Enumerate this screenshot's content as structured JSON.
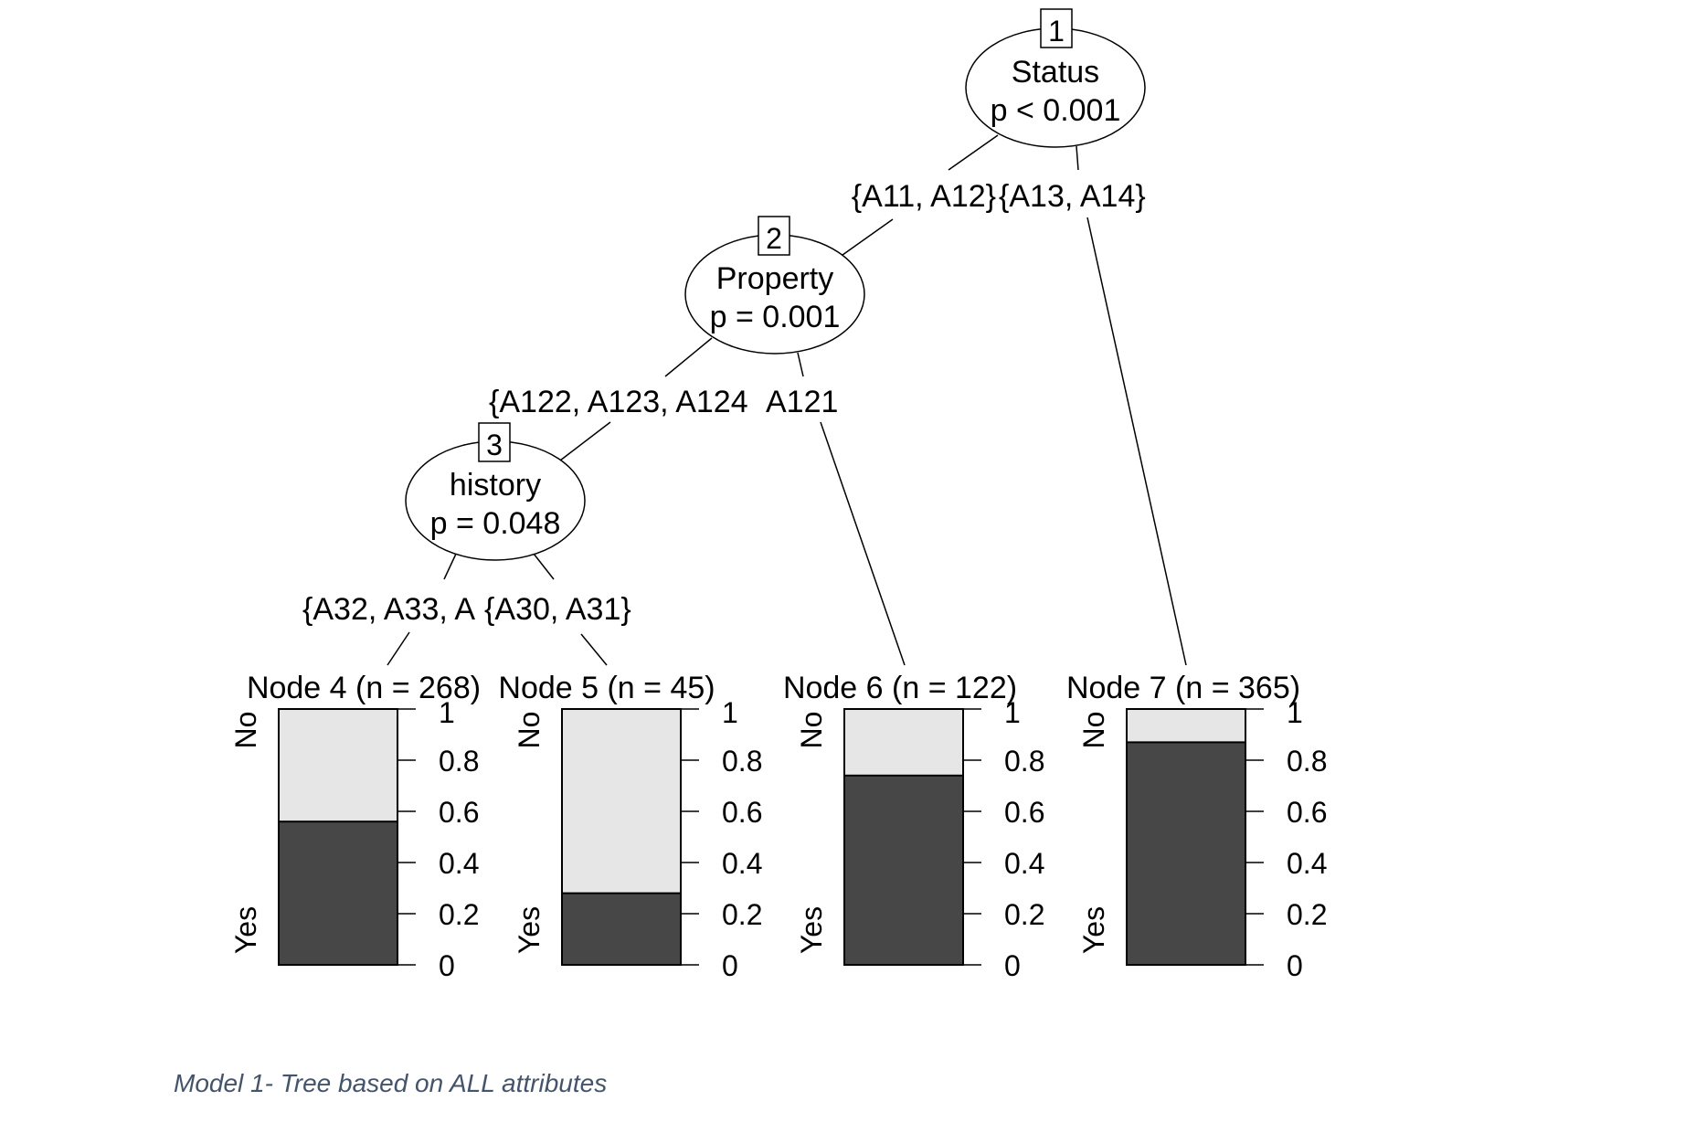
{
  "nodes": [
    {
      "id": "1",
      "variable": "Status",
      "pvalue": "p < 0.001"
    },
    {
      "id": "2",
      "variable": "Property",
      "pvalue": "p = 0.001"
    },
    {
      "id": "3",
      "variable": "history",
      "pvalue": "p = 0.048"
    }
  ],
  "edges": [
    {
      "label": "{A11, A12}"
    },
    {
      "label": "{A13, A14}"
    },
    {
      "label": "{A122, A123, A124"
    },
    {
      "label": "A121"
    },
    {
      "label": "{A32, A33, A"
    },
    {
      "label": "{A30, A31}"
    }
  ],
  "terminals": [
    {
      "title": "Node 4 (n = 268)",
      "yes": 0.56
    },
    {
      "title": "Node 5 (n = 45)",
      "yes": 0.28
    },
    {
      "title": "Node 6 (n = 122)",
      "yes": 0.74
    },
    {
      "title": "Node 7 (n = 365)",
      "yes": 0.87
    }
  ],
  "axis": {
    "ticks": [
      "0",
      "0.2",
      "0.4",
      "0.6",
      "0.8",
      "1"
    ],
    "class_top": "No",
    "class_bottom": "Yes"
  },
  "colors": {
    "yes": "#474747",
    "no": "#e6e6e6"
  },
  "caption": "Model 1- Tree based on ALL attributes"
}
